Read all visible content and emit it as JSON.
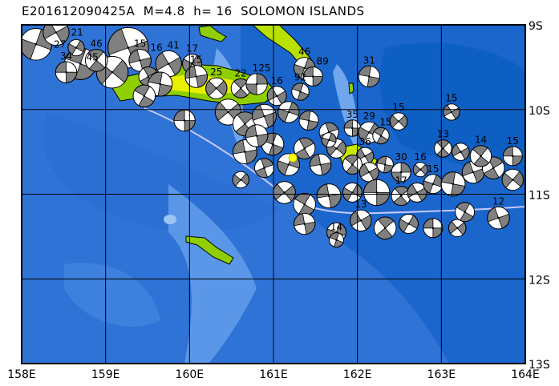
{
  "title": "E201612090425A  M=4.8  h= 16  SOLOMON ISLANDS",
  "map": {
    "lon_range": [
      158,
      164
    ],
    "lat_range": [
      -9,
      -13
    ],
    "lon_ticks": [
      "158E",
      "159E",
      "160E",
      "161E",
      "162E",
      "163E",
      "164E"
    ],
    "lat_ticks": [
      "9S",
      "10S",
      "11S",
      "12S",
      "13S"
    ],
    "colors": {
      "ocean": "#2f73d6",
      "deep": "#0e5fc4",
      "shallow": "#6fa6ee",
      "land": "#8fcf00",
      "highland": "#e8f000",
      "tension": "#ffffff",
      "compression": "#808080",
      "trench": "#c8c8ff",
      "highlight_event": "#ffff00"
    },
    "highlight_event": {
      "lon": 161.23,
      "lat": -10.57
    }
  },
  "events": [
    [
      158.17,
      -9.23,
      "27",
      7.5,
      20
    ],
    [
      158.41,
      -9.09,
      "21",
      6.9,
      60
    ],
    [
      158.7,
      -9.46,
      "",
      7.5,
      110
    ],
    [
      159.27,
      -9.27,
      "16",
      8.4,
      70
    ],
    [
      159.08,
      -9.56,
      "",
      7.5,
      40
    ],
    [
      158.53,
      -9.56,
      "34",
      6.4,
      90
    ],
    [
      158.89,
      -9.42,
      "46",
      6.5,
      130
    ],
    [
      158.65,
      -9.27,
      "45",
      5.9,
      30
    ],
    [
      159.41,
      -9.42,
      "15",
      6.5,
      75
    ],
    [
      159.51,
      -9.61,
      "",
      6.2,
      150
    ],
    [
      159.75,
      -9.46,
      "41",
      6.9,
      60
    ],
    [
      159.65,
      -9.7,
      "",
      6.7,
      100
    ],
    [
      160.03,
      -9.46,
      "17",
      6.2,
      30
    ],
    [
      160.08,
      -9.61,
      "15",
      6.5,
      80
    ],
    [
      159.46,
      -9.84,
      "",
      6.5,
      120
    ],
    [
      159.94,
      -10.13,
      "",
      6.4,
      90
    ],
    [
      160.32,
      -9.75,
      "25",
      6.4,
      45
    ],
    [
      160.61,
      -9.75,
      "22",
      6.2,
      135
    ],
    [
      160.8,
      -9.7,
      "125",
      6.4,
      0
    ],
    [
      161.04,
      -9.84,
      "16",
      6.2,
      60
    ],
    [
      161.37,
      -9.51,
      "46",
      6.4,
      20
    ],
    [
      161.47,
      -9.61,
      "89",
      6.2,
      90
    ],
    [
      161.32,
      -9.79,
      "92",
      6.0,
      110
    ],
    [
      160.46,
      -10.03,
      "",
      6.9,
      50
    ],
    [
      160.66,
      -10.17,
      "",
      6.7,
      140
    ],
    [
      160.89,
      -10.08,
      "",
      6.7,
      70
    ],
    [
      161.18,
      -10.03,
      "",
      6.4,
      20
    ],
    [
      161.42,
      -10.13,
      "",
      6.2,
      100
    ],
    [
      161.66,
      -10.27,
      "",
      6.2,
      160
    ],
    [
      161.94,
      -10.22,
      "35",
      5.9,
      90
    ],
    [
      162.14,
      -10.27,
      "29",
      6.4,
      30
    ],
    [
      162.28,
      -10.31,
      "15",
      5.9,
      120
    ],
    [
      162.09,
      -10.55,
      "36",
      6.0,
      60
    ],
    [
      160.66,
      -10.5,
      "",
      6.7,
      80
    ],
    [
      160.61,
      -10.83,
      "",
      5.9,
      40
    ],
    [
      160.99,
      -10.41,
      "",
      6.5,
      110
    ],
    [
      161.18,
      -10.65,
      "",
      6.5,
      20
    ],
    [
      161.37,
      -10.46,
      "",
      6.4,
      150
    ],
    [
      161.56,
      -10.65,
      "",
      6.4,
      80
    ],
    [
      161.75,
      -10.46,
      "",
      6.2,
      40
    ],
    [
      161.94,
      -10.65,
      "",
      6.2,
      130
    ],
    [
      162.14,
      -10.74,
      "",
      6.2,
      60
    ],
    [
      162.33,
      -10.65,
      "",
      5.9,
      100
    ],
    [
      162.52,
      -10.74,
      "30",
      6.2,
      0
    ],
    [
      161.13,
      -10.98,
      "",
      6.5,
      50
    ],
    [
      161.37,
      -11.12,
      "",
      6.5,
      120
    ],
    [
      161.66,
      -11.02,
      "",
      6.7,
      80
    ],
    [
      161.94,
      -10.98,
      "",
      6.2,
      30
    ],
    [
      162.23,
      -10.98,
      "",
      6.9,
      90
    ],
    [
      162.52,
      -11.02,
      "17",
      6.2,
      140
    ],
    [
      162.71,
      -10.98,
      "",
      6.2,
      60
    ],
    [
      162.9,
      -10.88,
      "15",
      6.2,
      20
    ],
    [
      163.14,
      -10.88,
      "",
      6.7,
      100
    ],
    [
      163.38,
      -10.74,
      "",
      6.5,
      70
    ],
    [
      163.62,
      -10.69,
      "",
      6.5,
      150
    ],
    [
      163.85,
      -10.83,
      "",
      6.4,
      40
    ],
    [
      163.85,
      -10.55,
      "15",
      6.2,
      90
    ],
    [
      163.47,
      -10.55,
      "14",
      6.4,
      130
    ],
    [
      163.23,
      -10.5,
      "",
      6.0,
      60
    ],
    [
      161.37,
      -11.35,
      "",
      6.4,
      80
    ],
    [
      161.75,
      -11.45,
      "",
      6.2,
      20
    ],
    [
      161.75,
      -11.54,
      "14",
      5.7,
      110
    ],
    [
      162.04,
      -11.31,
      "13",
      6.4,
      60
    ],
    [
      162.33,
      -11.4,
      "",
      6.5,
      140
    ],
    [
      162.61,
      -11.35,
      "",
      6.2,
      30
    ],
    [
      162.9,
      -11.4,
      "",
      6.2,
      90
    ],
    [
      163.19,
      -11.4,
      "",
      6.0,
      50
    ],
    [
      163.28,
      -11.21,
      "",
      6.2,
      120
    ],
    [
      163.68,
      -11.28,
      "12",
      6.5,
      70
    ],
    [
      162.14,
      -9.61,
      "31",
      6.4,
      100
    ],
    [
      162.49,
      -10.14,
      "15",
      6.0,
      45
    ],
    [
      163.12,
      -10.03,
      "15",
      5.9,
      60
    ],
    [
      163.02,
      -10.46,
      "13",
      6.0,
      135
    ],
    [
      162.75,
      -10.71,
      "16",
      5.7,
      45
    ],
    [
      161.66,
      -10.36,
      "",
      5.7,
      20
    ],
    [
      160.89,
      -10.69,
      "",
      6.2,
      160
    ],
    [
      160.8,
      -10.31,
      "",
      6.5,
      80
    ]
  ]
}
